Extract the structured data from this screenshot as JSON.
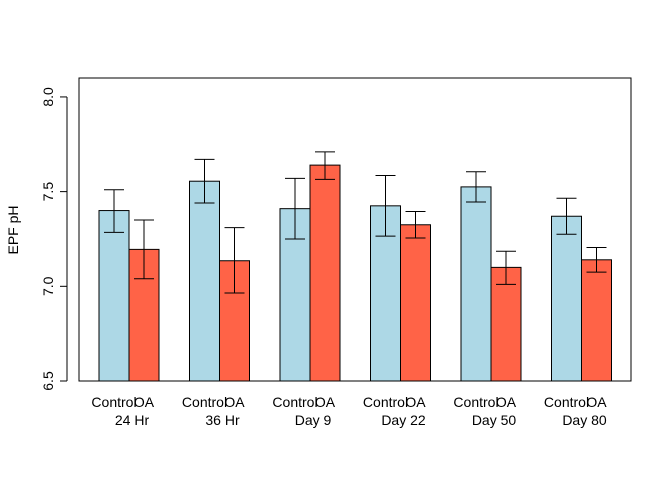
{
  "chart_data": {
    "type": "bar",
    "title": "",
    "xlabel": "",
    "ylabel": "EPF pH",
    "ylim": [
      6.5,
      8.1
    ],
    "yticks": [
      "6.5",
      "7.0",
      "7.5",
      "8.0"
    ],
    "grid": false,
    "legend": "none",
    "bar_labels": [
      "Control",
      "OA"
    ],
    "groups": [
      "24 Hr",
      "36 Hr",
      "Day 9",
      "Day 22",
      "Day 50",
      "Day 80"
    ],
    "series": [
      {
        "name": "Control",
        "color": "#ADD8E6",
        "values": [
          7.4,
          7.555,
          7.41,
          7.425,
          7.525,
          7.37
        ],
        "err_low": [
          7.285,
          7.44,
          7.25,
          7.265,
          7.445,
          7.275
        ],
        "err_high": [
          7.51,
          7.67,
          7.57,
          7.585,
          7.605,
          7.465
        ]
      },
      {
        "name": "OA",
        "color": "#FF6347",
        "values": [
          7.195,
          7.135,
          7.64,
          7.325,
          7.1,
          7.14
        ],
        "err_low": [
          7.04,
          6.965,
          7.565,
          7.255,
          7.01,
          7.075
        ],
        "err_high": [
          7.35,
          7.31,
          7.71,
          7.395,
          7.185,
          7.205
        ]
      }
    ]
  }
}
